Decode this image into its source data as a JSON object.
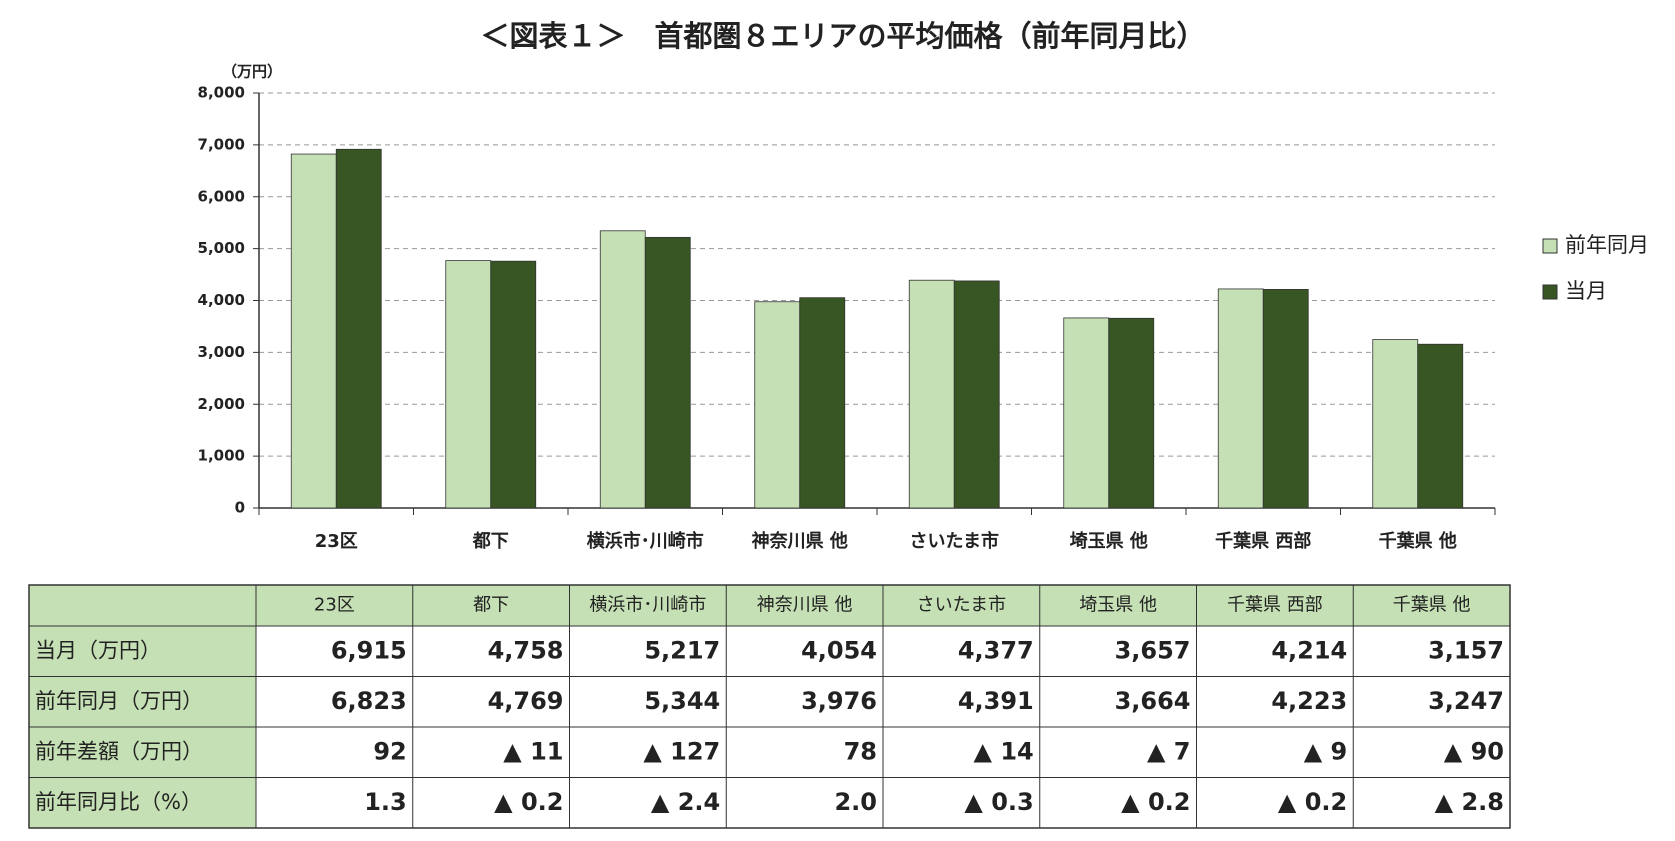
{
  "chart_data": {
    "type": "bar",
    "title": "＜図表１＞　首都圏８エリアの平均価格（前年同月比）",
    "y_unit": "（万円）",
    "categories": [
      "23区",
      "都下",
      "横浜市･川崎市",
      "神奈川県 他",
      "さいたま市",
      "埼玉県 他",
      "千葉県 西部",
      "千葉県 他"
    ],
    "series": [
      {
        "name": "前年同月",
        "color": "#c5e0b4",
        "values": [
          6823,
          4769,
          5344,
          3976,
          4391,
          3664,
          4223,
          3247
        ]
      },
      {
        "name": "当月",
        "color": "#375623",
        "values": [
          6915,
          4758,
          5217,
          4054,
          4377,
          3657,
          4214,
          3157
        ]
      }
    ],
    "ylim": [
      0,
      8000
    ],
    "yticks": [
      0,
      {
        "value": 1000,
        "label": "1,000"
      },
      {
        "value": 2000,
        "label": "2,000"
      },
      {
        "value": 3000,
        "label": "3,000"
      },
      {
        "value": 4000,
        "label": "4,000"
      },
      {
        "value": 5000,
        "label": "5,000"
      },
      {
        "value": 6000,
        "label": "6,000"
      },
      {
        "value": 7000,
        "label": "7,000"
      },
      {
        "value": 8000,
        "label": "8,000"
      }
    ],
    "grid": true,
    "legend": "right"
  },
  "table": {
    "rows": [
      {
        "label": "当月（万円）",
        "cells": [
          "6,915",
          "4,758",
          "5,217",
          "4,054",
          "4,377",
          "3,657",
          "4,214",
          "3,157"
        ]
      },
      {
        "label": "前年同月（万円）",
        "cells": [
          "6,823",
          "4,769",
          "5,344",
          "3,976",
          "4,391",
          "3,664",
          "4,223",
          "3,247"
        ]
      },
      {
        "label": "前年差額（万円）",
        "cells": [
          "92",
          "▲ 11",
          "▲ 127",
          "78",
          "▲ 14",
          "▲ 7",
          "▲ 9",
          "▲ 90"
        ]
      },
      {
        "label": "前年同月比（%）",
        "cells": [
          "1.3",
          "▲ 0.2",
          "▲ 2.4",
          "2.0",
          "▲ 0.3",
          "▲ 0.2",
          "▲ 0.2",
          "▲ 2.8"
        ]
      }
    ]
  }
}
